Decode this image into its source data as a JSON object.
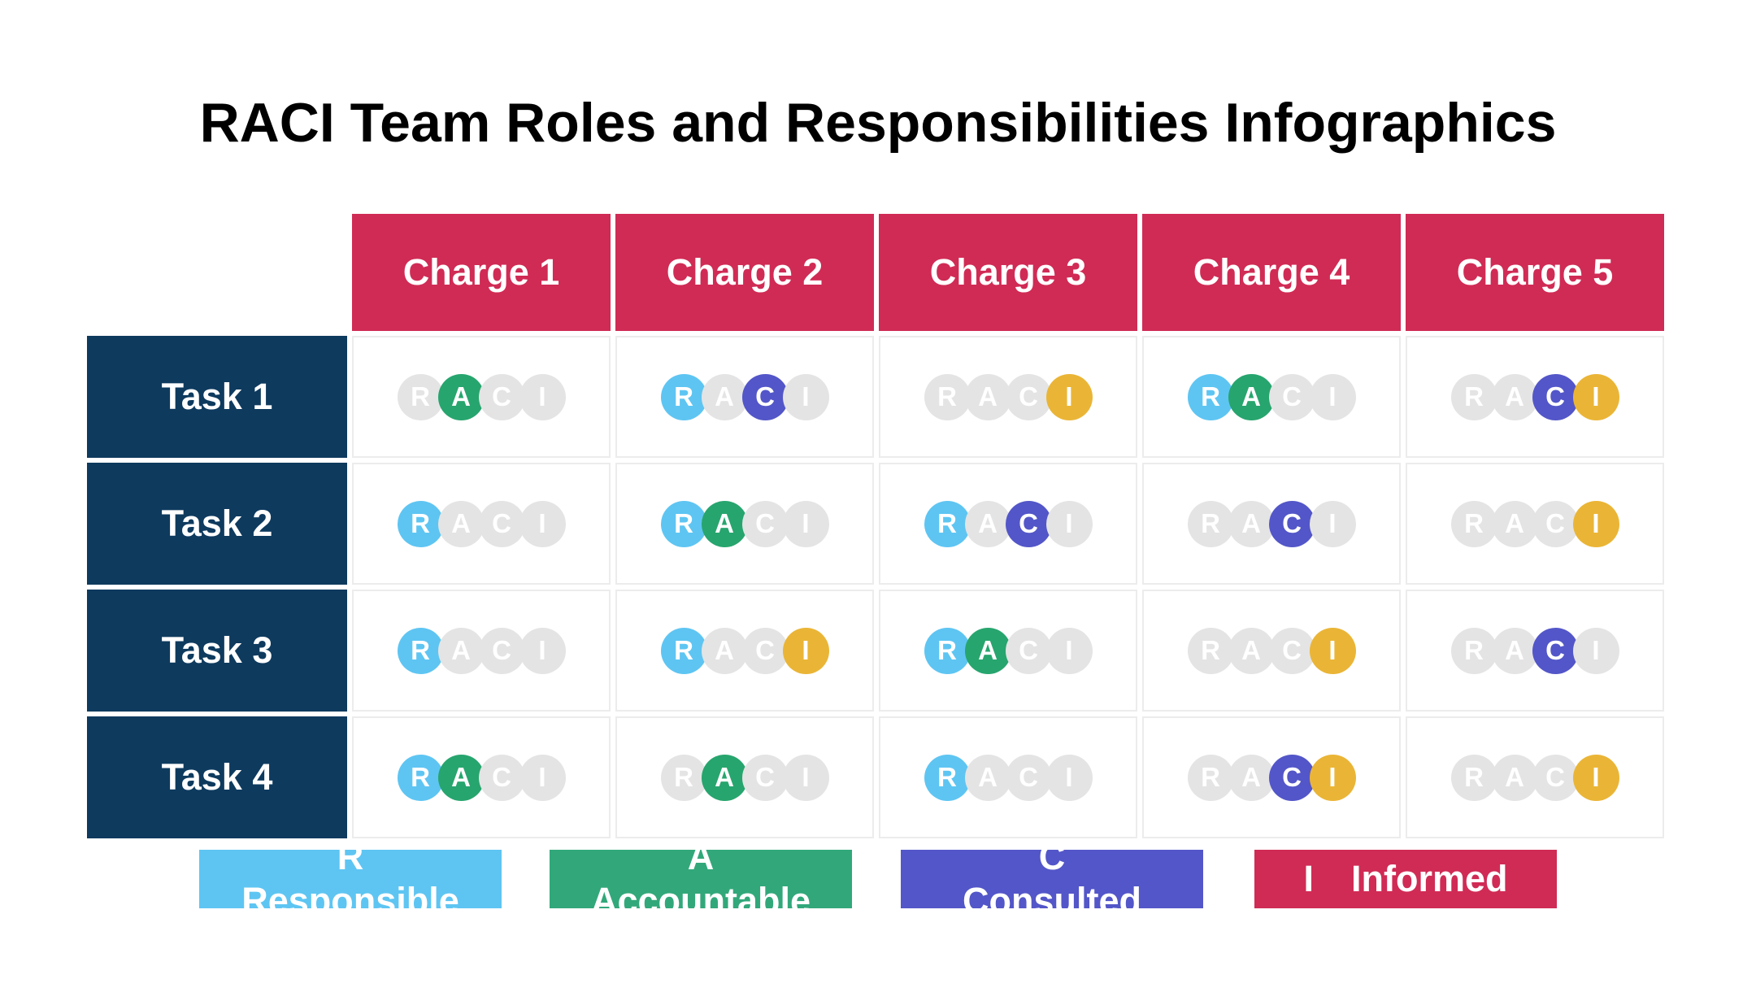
{
  "title": "RACI Team Roles and Responsibilities Infographics",
  "colors": {
    "header_bg": "#D02B55",
    "task_bg": "#0E3A5E",
    "responsible": "#5EC5F2",
    "accountable": "#27A56E",
    "consulted": "#5356C8",
    "informed_circle": "#EAB536",
    "inactive_circle": "#E4E4E4",
    "cell_border": "#ECECEC"
  },
  "matrix": {
    "role_letters": [
      "R",
      "A",
      "C",
      "I"
    ],
    "columns": [
      "Charge 1",
      "Charge 2",
      "Charge 3",
      "Charge 4",
      "Charge 5"
    ],
    "rows": [
      {
        "label": "Task 1",
        "cells": [
          [
            "A"
          ],
          [
            "R",
            "C"
          ],
          [
            "I"
          ],
          [
            "R",
            "A"
          ],
          [
            "C",
            "I"
          ]
        ]
      },
      {
        "label": "Task 2",
        "cells": [
          [
            "R"
          ],
          [
            "R",
            "A"
          ],
          [
            "R",
            "C"
          ],
          [
            "C"
          ],
          [
            "I"
          ]
        ]
      },
      {
        "label": "Task 3",
        "cells": [
          [
            "R"
          ],
          [
            "R",
            "I"
          ],
          [
            "R",
            "A"
          ],
          [
            "I"
          ],
          [
            "C"
          ]
        ]
      },
      {
        "label": "Task 4",
        "cells": [
          [
            "R",
            "A"
          ],
          [
            "A"
          ],
          [
            "R"
          ],
          [
            "C",
            "I"
          ],
          [
            "I"
          ]
        ]
      }
    ]
  },
  "legend": [
    {
      "letter": "R",
      "label": "Responsible",
      "color": "#5EC5F2"
    },
    {
      "letter": "A",
      "label": "Accountable",
      "color": "#32A87A"
    },
    {
      "letter": "C",
      "label": "Consulted",
      "color": "#5356C8"
    },
    {
      "letter": "I",
      "label": "Informed",
      "color": "#D02B55"
    }
  ]
}
